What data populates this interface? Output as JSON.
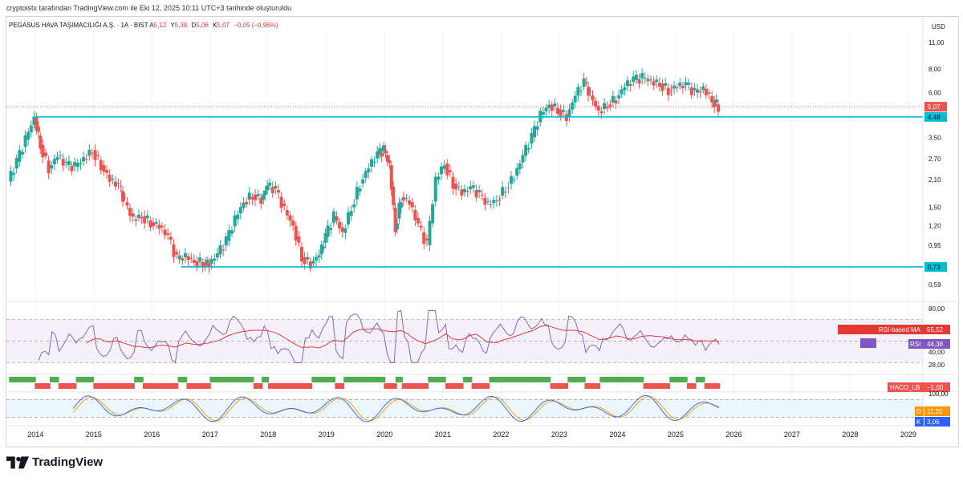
{
  "header": {
    "note": "cryptoistx tarafından TradingView.com ile Eki 12, 2025 10:11 UTC+3 tarihinde oluşturuldu"
  },
  "legend": {
    "symbol": "PEGASUS HAVA TAŞIMACILIĞI A.Ş. · 1A · BIST",
    "open_label": "A",
    "open": "5,12",
    "high_label": "Y",
    "high": "5,38",
    "low_label": "D",
    "low": "5,06",
    "close_label": "K",
    "close": "5,07",
    "change": "−0,05 (−0,96%)"
  },
  "currency": "USD",
  "footer": {
    "brand": "TradingView"
  },
  "colors": {
    "up": "#26a69a",
    "down": "#ef5350",
    "level_line": "#00bcd4",
    "rsi": "#7e57c2",
    "rsi_ma": "#e53935",
    "stoch_k": "#2962ff",
    "stoch_d": "#ff9800",
    "haco_up": "#4caf50",
    "haco_down": "#ef5350"
  },
  "chart_data": [
    {
      "type": "candlestick",
      "scale": "log",
      "ylim": [
        0.5,
        12.5
      ],
      "xlim": [
        2013.5,
        2029.25
      ],
      "y_ticks": [
        "11,00",
        "8,00",
        "6,00",
        "4,48",
        "3,50",
        "2,70",
        "2,10",
        "1,50",
        "1,20",
        "0,95",
        "0,73",
        "0,59"
      ],
      "y_tick_values": [
        11,
        8,
        6,
        4.48,
        3.5,
        2.7,
        2.1,
        1.5,
        1.2,
        0.95,
        0.73,
        0.59
      ],
      "x_ticks": [
        "2014",
        "2015",
        "2016",
        "2017",
        "2018",
        "2019",
        "2020",
        "2021",
        "2022",
        "2023",
        "2024",
        "2025",
        "2026",
        "2027",
        "2028",
        "2029"
      ],
      "x_tick_values": [
        2014,
        2015,
        2016,
        2017,
        2018,
        2019,
        2020,
        2021,
        2022,
        2023,
        2024,
        2025,
        2026,
        2027,
        2028,
        2029
      ],
      "horizontal_levels": [
        {
          "value": 4.48,
          "label": "4,48",
          "from": 2014.0
        },
        {
          "value": 0.73,
          "label": "0,73",
          "from": 2016.5
        }
      ],
      "last_price": {
        "value": 5.07,
        "label": "5,07"
      },
      "price_points": [
        [
          2013.55,
          2.05
        ],
        [
          2013.7,
          2.6
        ],
        [
          2013.85,
          3.4
        ],
        [
          2014.0,
          4.45
        ],
        [
          2014.1,
          3.2
        ],
        [
          2014.25,
          2.4
        ],
        [
          2014.4,
          2.8
        ],
        [
          2014.55,
          2.5
        ],
        [
          2014.7,
          2.45
        ],
        [
          2014.85,
          2.7
        ],
        [
          2015.0,
          3.0
        ],
        [
          2015.15,
          2.5
        ],
        [
          2015.3,
          2.1
        ],
        [
          2015.45,
          1.95
        ],
        [
          2015.55,
          1.6
        ],
        [
          2015.7,
          1.3
        ],
        [
          2015.85,
          1.35
        ],
        [
          2016.0,
          1.25
        ],
        [
          2016.15,
          1.2
        ],
        [
          2016.3,
          1.05
        ],
        [
          2016.45,
          0.8
        ],
        [
          2016.6,
          0.83
        ],
        [
          2016.75,
          0.78
        ],
        [
          2016.9,
          0.77
        ],
        [
          2017.0,
          0.76
        ],
        [
          2017.15,
          0.85
        ],
        [
          2017.3,
          1.0
        ],
        [
          2017.45,
          1.3
        ],
        [
          2017.6,
          1.6
        ],
        [
          2017.75,
          1.75
        ],
        [
          2017.9,
          1.65
        ],
        [
          2018.0,
          1.95
        ],
        [
          2018.15,
          1.85
        ],
        [
          2018.3,
          1.45
        ],
        [
          2018.45,
          1.2
        ],
        [
          2018.6,
          0.82
        ],
        [
          2018.75,
          0.76
        ],
        [
          2018.9,
          0.85
        ],
        [
          2019.0,
          1.05
        ],
        [
          2019.15,
          1.35
        ],
        [
          2019.3,
          1.1
        ],
        [
          2019.45,
          1.5
        ],
        [
          2019.6,
          2.0
        ],
        [
          2019.75,
          2.45
        ],
        [
          2019.9,
          2.85
        ],
        [
          2020.0,
          3.0
        ],
        [
          2020.1,
          2.5
        ],
        [
          2020.2,
          1.15
        ],
        [
          2020.3,
          1.7
        ],
        [
          2020.45,
          1.6
        ],
        [
          2020.6,
          1.2
        ],
        [
          2020.75,
          0.95
        ],
        [
          2020.9,
          2.1
        ],
        [
          2021.05,
          2.55
        ],
        [
          2021.2,
          2.0
        ],
        [
          2021.35,
          1.8
        ],
        [
          2021.5,
          1.9
        ],
        [
          2021.65,
          1.75
        ],
        [
          2021.8,
          1.55
        ],
        [
          2021.95,
          1.65
        ],
        [
          2022.1,
          1.9
        ],
        [
          2022.25,
          2.2
        ],
        [
          2022.4,
          2.8
        ],
        [
          2022.55,
          3.5
        ],
        [
          2022.7,
          4.6
        ],
        [
          2022.85,
          5.2
        ],
        [
          2023.0,
          4.9
        ],
        [
          2023.15,
          4.5
        ],
        [
          2023.3,
          5.8
        ],
        [
          2023.45,
          6.8
        ],
        [
          2023.55,
          5.8
        ],
        [
          2023.7,
          4.8
        ],
        [
          2023.85,
          5.2
        ],
        [
          2024.0,
          5.6
        ],
        [
          2024.15,
          6.5
        ],
        [
          2024.3,
          7.0
        ],
        [
          2024.45,
          7.2
        ],
        [
          2024.6,
          6.9
        ],
        [
          2024.75,
          6.7
        ],
        [
          2024.9,
          6.2
        ],
        [
          2025.05,
          6.5
        ],
        [
          2025.2,
          6.6
        ],
        [
          2025.35,
          6.0
        ],
        [
          2025.5,
          6.3
        ],
        [
          2025.65,
          5.5
        ],
        [
          2025.75,
          5.07
        ]
      ]
    },
    {
      "type": "line",
      "name": "RSI",
      "ylim": [
        20,
        85
      ],
      "y_ticks": [
        "80,00",
        "40,00",
        "28,00"
      ],
      "y_tick_values": [
        80,
        40,
        28
      ],
      "band": [
        30,
        70
      ],
      "series": [
        {
          "name": "RSI",
          "label": "RSI",
          "value": "44,38"
        },
        {
          "name": "RSI-based MA",
          "label": "RSI-based MA",
          "value": "55,52"
        }
      ]
    },
    {
      "type": "bar",
      "name": "HACO_LB",
      "label": "HACO_LB",
      "value": "−1,00"
    },
    {
      "type": "line",
      "name": "Stochastic",
      "ylim": [
        0,
        100
      ],
      "y_ticks": [
        "100,00"
      ],
      "y_tick_values": [
        100
      ],
      "band": [
        20,
        80
      ],
      "series": [
        {
          "name": "D",
          "label": "D",
          "value": "11,20"
        },
        {
          "name": "K",
          "label": "K",
          "value": "3,06"
        }
      ]
    }
  ]
}
